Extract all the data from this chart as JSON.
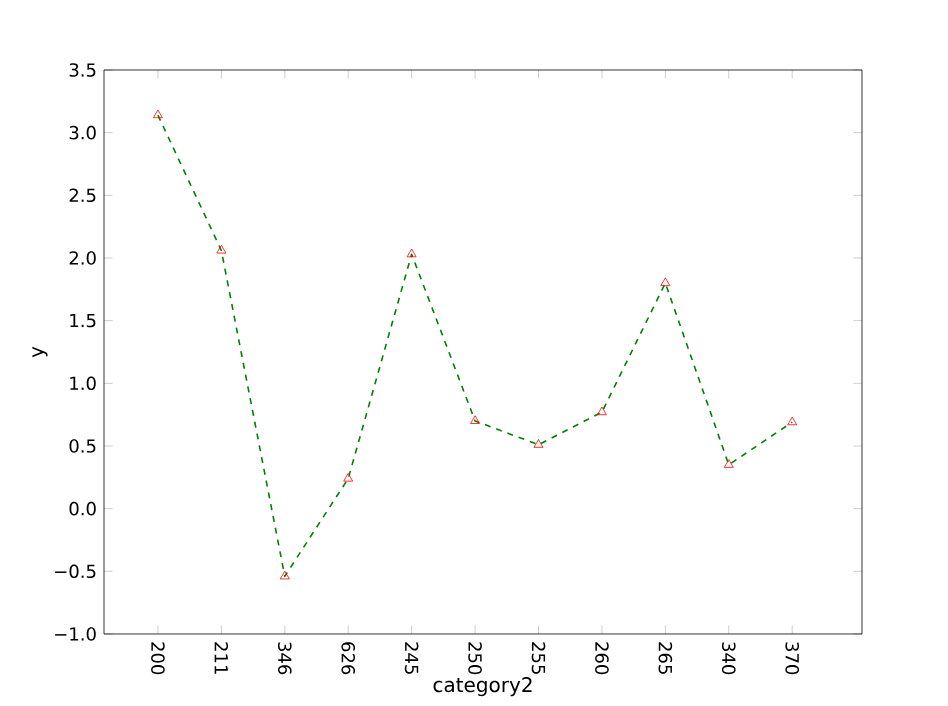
{
  "chart_data": {
    "type": "line",
    "xlabel": "category2",
    "ylabel": "y",
    "categories": [
      "200",
      "211",
      "346",
      "626",
      "245",
      "250",
      "255",
      "260",
      "265",
      "340",
      "370"
    ],
    "series": [
      {
        "color": "#008000",
        "colors": [
          "#ff0000",
          "#ff0000",
          "#ff0000",
          "#ff0000",
          "#ff0000",
          "#ff0000",
          "#ff0000",
          "#ff0000",
          "#ff0000",
          "#ff0000",
          "#ff0000"
        ],
        "values": [
          3.14,
          2.06,
          -0.54,
          0.24,
          2.03,
          0.7,
          0.51,
          0.77,
          1.8,
          0.35,
          0.69
        ]
      }
    ],
    "ylim": [
      -1.0,
      3.5
    ],
    "yticks": [
      {
        "value": -1.0,
        "label": "−1.0"
      },
      {
        "value": -0.5,
        "label": "−0.5"
      },
      {
        "value": 0.0,
        "label": "0.0"
      },
      {
        "value": 0.5,
        "label": "0.5"
      },
      {
        "value": 1.0,
        "label": "1.0"
      },
      {
        "value": 1.5,
        "label": "1.5"
      },
      {
        "value": 2.0,
        "label": "2.0"
      },
      {
        "value": 2.5,
        "label": "2.5"
      },
      {
        "value": 3.0,
        "label": "3.0"
      },
      {
        "value": 3.5,
        "label": "3.5"
      }
    ],
    "marker": "triangle",
    "line_style": "dashed"
  }
}
